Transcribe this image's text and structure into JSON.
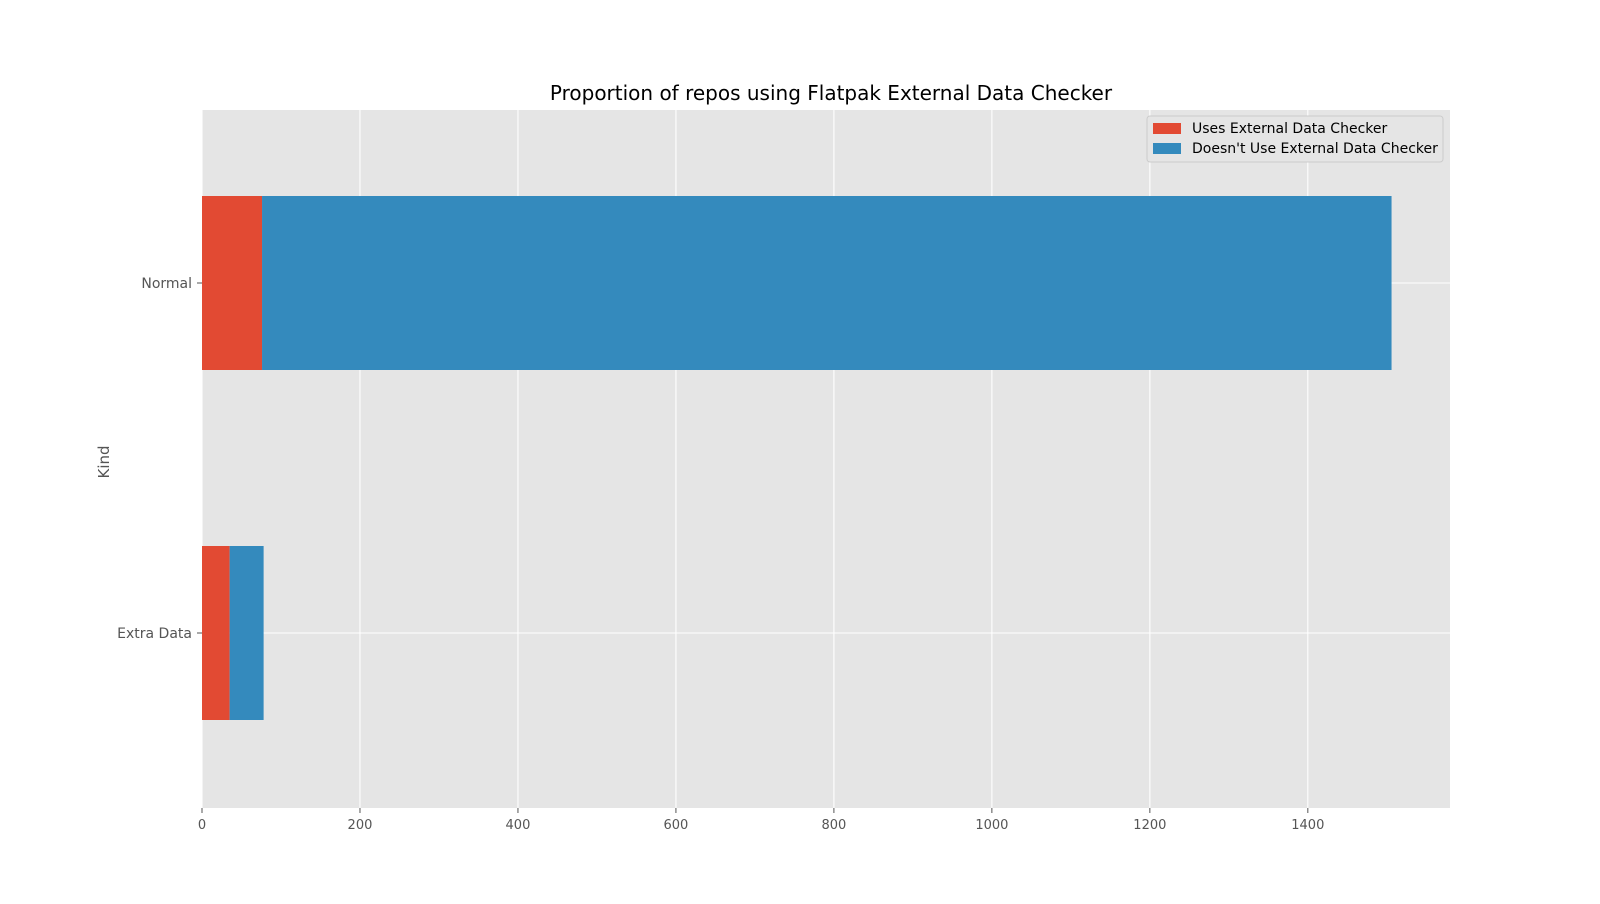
{
  "chart_data": {
    "type": "bar",
    "orientation": "horizontal",
    "stacked": true,
    "title": "Proportion of repos using Flatpak External Data Checker",
    "xlabel": "",
    "ylabel": "Kind",
    "categories": [
      "Normal",
      "Extra Data"
    ],
    "series": [
      {
        "name": "Uses External Data Checker",
        "values": [
          76,
          35
        ],
        "color": "#E24A33"
      },
      {
        "name": "Doesn't Use External Data Checker",
        "values": [
          1430,
          43
        ],
        "color": "#348ABD"
      }
    ],
    "xlim": [
      0,
      1580
    ],
    "xticks": [
      0,
      200,
      400,
      600,
      800,
      1000,
      1200,
      1400
    ],
    "grid": true,
    "legend_position": "top-right",
    "background_color": "#E5E5E5",
    "grid_color": "#FFFFFF"
  }
}
